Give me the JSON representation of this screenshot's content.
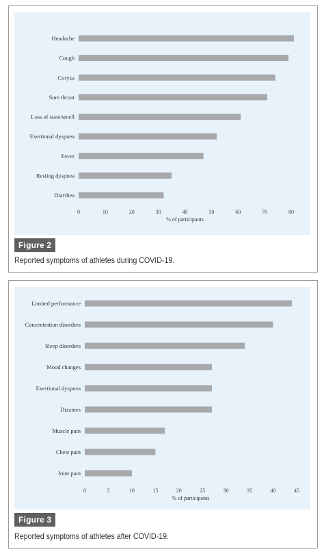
{
  "figures": [
    {
      "label": "Figure 2",
      "caption": "Reported symptoms of athletes during COVID-19.",
      "chart_data": {
        "type": "bar",
        "orientation": "horizontal",
        "categories": [
          "Headache",
          "Cough",
          "Coryza",
          "Sore throat",
          "Loss of taste/smell",
          "Exertional dyspnea",
          "Fever",
          "Resting dyspnea",
          "Diarrhea"
        ],
        "values": [
          81,
          79,
          74,
          71,
          61,
          52,
          47,
          35,
          32
        ],
        "xlabel": "% of participants",
        "xlim": [
          0,
          80
        ],
        "xticks": [
          0,
          10,
          20,
          30,
          40,
          50,
          60,
          70,
          80
        ],
        "grid": false,
        "bar_color": "#a7a9ac",
        "background": "#e7f2fa"
      }
    },
    {
      "label": "Figure 3",
      "caption": "Reported symptoms of athletes after COVID-19.",
      "chart_data": {
        "type": "bar",
        "orientation": "horizontal",
        "categories": [
          "Limited performance",
          "Concentration disorders",
          "Sleep disorders",
          "Mood changes",
          "Exertional dyspnea",
          "Dizzines",
          "Muscle pain",
          "Chest pain",
          "Joint pain"
        ],
        "values": [
          44,
          40,
          34,
          27,
          27,
          27,
          17,
          15,
          10
        ],
        "xlabel": "% of participants",
        "xlim": [
          0,
          45
        ],
        "xticks": [
          0,
          5,
          10,
          15,
          20,
          25,
          30,
          35,
          40,
          45
        ],
        "grid": false,
        "bar_color": "#a7a9ac",
        "background": "#e7f2fa"
      }
    }
  ]
}
